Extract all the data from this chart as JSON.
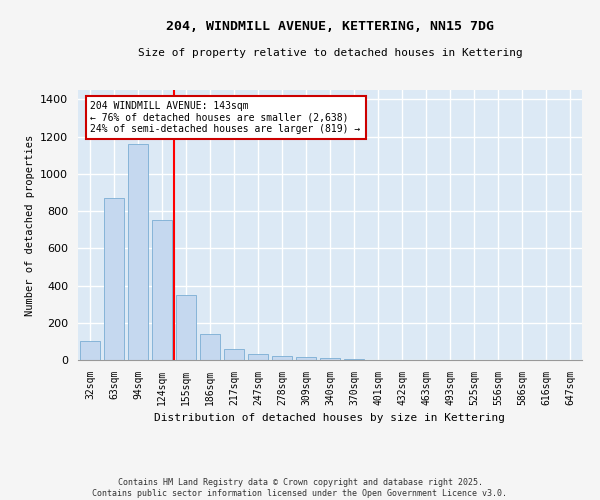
{
  "title": "204, WINDMILL AVENUE, KETTERING, NN15 7DG",
  "subtitle": "Size of property relative to detached houses in Kettering",
  "xlabel": "Distribution of detached houses by size in Kettering",
  "ylabel": "Number of detached properties",
  "categories": [
    "32sqm",
    "63sqm",
    "94sqm",
    "124sqm",
    "155sqm",
    "186sqm",
    "217sqm",
    "247sqm",
    "278sqm",
    "309sqm",
    "340sqm",
    "370sqm",
    "401sqm",
    "432sqm",
    "463sqm",
    "493sqm",
    "525sqm",
    "556sqm",
    "586sqm",
    "616sqm",
    "647sqm"
  ],
  "values": [
    100,
    870,
    1160,
    750,
    350,
    140,
    60,
    30,
    20,
    15,
    10,
    5,
    0,
    0,
    0,
    0,
    0,
    0,
    0,
    0,
    0
  ],
  "bar_color": "#c5d8ef",
  "bar_edge_color": "#7aadd4",
  "annotation_text": "204 WINDMILL AVENUE: 143sqm\n← 76% of detached houses are smaller (2,638)\n24% of semi-detached houses are larger (819) →",
  "annotation_box_color": "#ffffff",
  "annotation_box_edge_color": "#cc0000",
  "background_color": "#dce9f5",
  "grid_color": "#ffffff",
  "fig_background_color": "#f5f5f5",
  "footer": "Contains HM Land Registry data © Crown copyright and database right 2025.\nContains public sector information licensed under the Open Government Licence v3.0.",
  "ylim": [
    0,
    1450
  ],
  "yticks": [
    0,
    200,
    400,
    600,
    800,
    1000,
    1200,
    1400
  ],
  "red_line_index": 3.5
}
